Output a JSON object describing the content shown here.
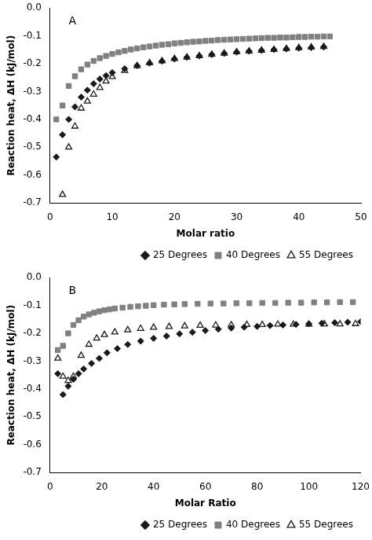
{
  "chart_data": [
    {
      "type": "scatter",
      "xlabel": "Molar ratio",
      "ylabel": "Reaction heat, ΔH (kJ/mol)",
      "xlim": [
        0,
        50
      ],
      "ylim": [
        -0.7,
        0.0
      ],
      "xticks": [
        0,
        10,
        20,
        30,
        40,
        50
      ],
      "yticks": [
        {
          "value": 0.0,
          "label": "0.0"
        },
        -0.1,
        -0.2,
        -0.3,
        -0.4,
        -0.5,
        -0.6,
        -0.7
      ],
      "grid": false,
      "legend": "lower right",
      "annotations": [
        "A"
      ],
      "series": [
        {
          "name": "25 Degrees",
          "color": "#1a1a1a",
          "marker": "diamond",
          "x": [
            1,
            2,
            3,
            4,
            5,
            6,
            7,
            8,
            9,
            10,
            12,
            14,
            16,
            18,
            20,
            22,
            24,
            26,
            28,
            30,
            32,
            34,
            36,
            38,
            40,
            42,
            44
          ],
          "values": [
            -0.535,
            -0.455,
            -0.4,
            -0.355,
            -0.32,
            -0.295,
            -0.272,
            -0.255,
            -0.243,
            -0.232,
            -0.218,
            -0.207,
            -0.198,
            -0.191,
            -0.183,
            -0.177,
            -0.172,
            -0.167,
            -0.163,
            -0.158,
            -0.155,
            -0.152,
            -0.149,
            -0.147,
            -0.144,
            -0.142,
            -0.14
          ]
        },
        {
          "name": "40 Degrees",
          "color": "#808080",
          "marker": "square",
          "x": [
            1,
            2,
            3,
            4,
            5,
            6,
            7,
            8,
            9,
            10,
            11,
            12,
            13,
            14,
            15,
            16,
            17,
            18,
            19,
            20,
            21,
            22,
            23,
            24,
            25,
            26,
            27,
            28,
            29,
            30,
            31,
            32,
            33,
            34,
            35,
            36,
            37,
            38,
            39,
            40,
            41,
            42,
            43,
            44,
            45
          ],
          "values": [
            -0.4,
            -0.35,
            -0.28,
            -0.245,
            -0.22,
            -0.203,
            -0.19,
            -0.18,
            -0.172,
            -0.165,
            -0.159,
            -0.154,
            -0.149,
            -0.145,
            -0.141,
            -0.138,
            -0.135,
            -0.132,
            -0.13,
            -0.127,
            -0.125,
            -0.123,
            -0.121,
            -0.12,
            -0.118,
            -0.117,
            -0.115,
            -0.114,
            -0.113,
            -0.112,
            -0.111,
            -0.11,
            -0.109,
            -0.108,
            -0.107,
            -0.107,
            -0.106,
            -0.106,
            -0.105,
            -0.104,
            -0.104,
            -0.103,
            -0.103,
            -0.102,
            -0.102
          ]
        },
        {
          "name": "55 Degrees",
          "color": "#1a1a1a",
          "marker": "triangle-open",
          "x": [
            2,
            3,
            4,
            5,
            6,
            7,
            8,
            9,
            10,
            12,
            14,
            16,
            18,
            20,
            22,
            24,
            26,
            28,
            30,
            32,
            34,
            36,
            38,
            40,
            42,
            44
          ],
          "values": [
            -0.67,
            -0.5,
            -0.425,
            -0.36,
            -0.335,
            -0.31,
            -0.286,
            -0.263,
            -0.247,
            -0.225,
            -0.208,
            -0.197,
            -0.19,
            -0.182,
            -0.177,
            -0.172,
            -0.167,
            -0.163,
            -0.158,
            -0.155,
            -0.152,
            -0.149,
            -0.146,
            -0.143,
            -0.141,
            -0.139
          ]
        }
      ]
    },
    {
      "type": "scatter",
      "xlabel": "Molar Ratio",
      "ylabel": "Reaction heat, ΔH (kJ/mol)",
      "xlim": [
        0,
        120
      ],
      "ylim": [
        -0.7,
        0.0
      ],
      "xticks": [
        0,
        20,
        40,
        60,
        80,
        100,
        120
      ],
      "yticks": [
        {
          "value": 0.0,
          "label": "0.0"
        },
        -0.1,
        -0.2,
        -0.3,
        -0.4,
        -0.5,
        -0.6,
        -0.7
      ],
      "grid": false,
      "legend": "lower right",
      "annotations": [
        "B"
      ],
      "series": [
        {
          "name": "25 Degrees",
          "color": "#1a1a1a",
          "marker": "diamond",
          "x": [
            3,
            5,
            7,
            9,
            11,
            13,
            16,
            19,
            22,
            26,
            30,
            35,
            40,
            45,
            50,
            55,
            60,
            65,
            70,
            75,
            80,
            85,
            90,
            95,
            100,
            105,
            110,
            115,
            120
          ],
          "values": [
            -0.345,
            -0.42,
            -0.39,
            -0.365,
            -0.345,
            -0.328,
            -0.308,
            -0.29,
            -0.27,
            -0.255,
            -0.24,
            -0.228,
            -0.218,
            -0.21,
            -0.202,
            -0.196,
            -0.19,
            -0.185,
            -0.181,
            -0.178,
            -0.175,
            -0.172,
            -0.17,
            -0.168,
            -0.166,
            -0.164,
            -0.162,
            -0.16,
            -0.158
          ]
        },
        {
          "name": "40 Degrees",
          "color": "#808080",
          "marker": "square",
          "x": [
            3,
            5,
            7,
            9,
            11,
            13,
            15,
            17,
            19,
            21,
            23,
            25,
            28,
            31,
            34,
            37,
            40,
            44,
            48,
            52,
            57,
            62,
            67,
            72,
            77,
            82,
            87,
            92,
            97,
            102,
            107,
            112,
            117
          ],
          "values": [
            -0.26,
            -0.245,
            -0.2,
            -0.17,
            -0.153,
            -0.14,
            -0.132,
            -0.126,
            -0.121,
            -0.117,
            -0.114,
            -0.111,
            -0.108,
            -0.105,
            -0.103,
            -0.101,
            -0.099,
            -0.097,
            -0.096,
            -0.095,
            -0.094,
            -0.093,
            -0.093,
            -0.092,
            -0.092,
            -0.091,
            -0.091,
            -0.09,
            -0.09,
            -0.089,
            -0.089,
            -0.088,
            -0.088
          ]
        },
        {
          "name": "55 Degrees",
          "color": "#1a1a1a",
          "marker": "triangle-open",
          "x": [
            3,
            5,
            7,
            9,
            12,
            15,
            18,
            21,
            25,
            30,
            35,
            40,
            46,
            52,
            58,
            64,
            70,
            76,
            82,
            88,
            94,
            100,
            106,
            112,
            118
          ],
          "values": [
            -0.29,
            -0.355,
            -0.37,
            -0.355,
            -0.28,
            -0.24,
            -0.218,
            -0.205,
            -0.196,
            -0.188,
            -0.183,
            -0.179,
            -0.176,
            -0.174,
            -0.172,
            -0.171,
            -0.17,
            -0.169,
            -0.169,
            -0.168,
            -0.168,
            -0.168,
            -0.167,
            -0.167,
            -0.166
          ]
        }
      ]
    }
  ]
}
